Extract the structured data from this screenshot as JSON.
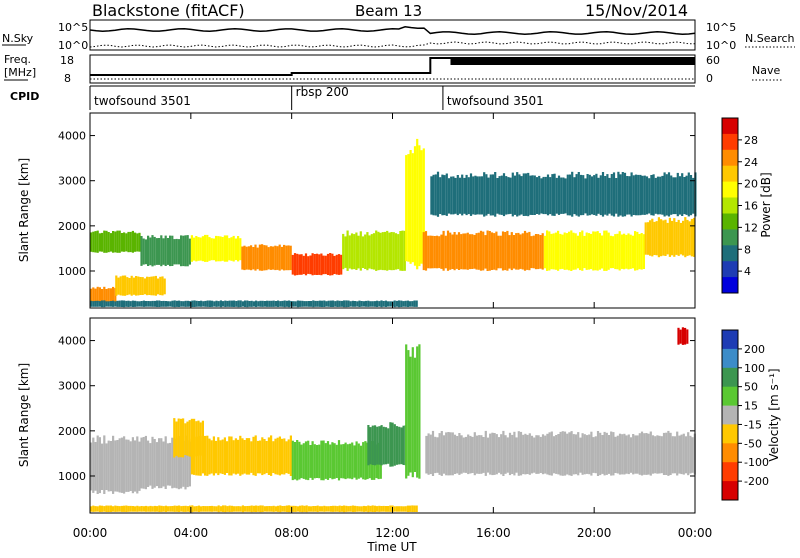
{
  "header": {
    "station": "Blackstone (fitACF)",
    "beam": "Beam 13",
    "date": "15/Nov/2014"
  },
  "params": {
    "nsky_label": "N.Sky",
    "nsky_ticks": [
      "10^5",
      "10^0"
    ],
    "nsearch_label": "N.Search",
    "nsearch_ticks": [
      "10^5",
      "10^0"
    ],
    "freq_label": "Freq.",
    "freq_unit": "[MHz]",
    "freq_ticks": [
      "18",
      "8"
    ],
    "nave_label": "Nave",
    "nave_ticks": [
      "60",
      "0"
    ],
    "cpid_label": "CPID",
    "cpid_segments": [
      {
        "name": "twofsound 3501",
        "start_hour": 0.0
      },
      {
        "name": "rbsp 200",
        "start_hour": 8.0
      },
      {
        "name": "twofsound 3501",
        "start_hour": 14.0
      }
    ]
  },
  "axes": {
    "ylabel": "Slant Range [km]",
    "yticks": [
      "4000",
      "3000",
      "2000",
      "1000"
    ],
    "xlabel": "Time UT",
    "xticks": [
      "00:00",
      "04:00",
      "08:00",
      "12:00",
      "16:00",
      "20:00",
      "00:00"
    ]
  },
  "colorbars": {
    "power": {
      "label": "Power [dB]",
      "ticks": [
        "28",
        "24",
        "20",
        "16",
        "12",
        "8",
        "4"
      ],
      "colors": [
        "#d70000",
        "#ff3c00",
        "#ff8c00",
        "#ffc800",
        "#ffff00",
        "#b4e600",
        "#5ab400",
        "#3c9650",
        "#1e6e7a",
        "#1e3cb4",
        "#0000dc"
      ]
    },
    "velocity": {
      "label": "Velocity [m s⁻¹]",
      "ticks": [
        "200",
        "100",
        "50",
        "15",
        "-15",
        "-50",
        "-100",
        "-200"
      ],
      "colors": [
        "#1e3cb4",
        "#3c8cc8",
        "#3c9650",
        "#5ac832",
        "#b4b4b4",
        "#ffc800",
        "#ff8c00",
        "#ff3c00",
        "#d70000"
      ]
    }
  },
  "chart_data": [
    {
      "type": "heatmap",
      "name": "power",
      "x_unit": "hours UT",
      "x_range": [
        0,
        24
      ],
      "y_range": [
        180,
        4500
      ],
      "value_range": [
        0,
        32
      ],
      "regions": [
        {
          "t0": 0.0,
          "t1": 1.0,
          "r0": 300,
          "r1": 650,
          "value": 26
        },
        {
          "t0": 1.0,
          "t1": 3.0,
          "r0": 450,
          "r1": 900,
          "value": 22
        },
        {
          "t0": 0.0,
          "t1": 2.0,
          "r0": 1400,
          "r1": 1900,
          "value": 14
        },
        {
          "t0": 2.0,
          "t1": 4.0,
          "r0": 1100,
          "r1": 1800,
          "value": 10
        },
        {
          "t0": 4.0,
          "t1": 6.0,
          "r0": 1200,
          "r1": 1800,
          "value": 20
        },
        {
          "t0": 6.0,
          "t1": 8.0,
          "r0": 1000,
          "r1": 1600,
          "value": 24
        },
        {
          "t0": 8.0,
          "t1": 10.0,
          "r0": 900,
          "r1": 1400,
          "value": 28
        },
        {
          "t0": 10.0,
          "t1": 12.5,
          "r0": 1000,
          "r1": 1900,
          "value": 16
        },
        {
          "t0": 12.5,
          "t1": 13.2,
          "r0": 1000,
          "r1": 4000,
          "value": 20
        },
        {
          "t0": 13.2,
          "t1": 18.0,
          "r0": 1000,
          "r1": 1900,
          "value": 24
        },
        {
          "t0": 18.0,
          "t1": 22.0,
          "r0": 1000,
          "r1": 1900,
          "value": 20
        },
        {
          "t0": 22.0,
          "t1": 24.0,
          "r0": 1300,
          "r1": 2200,
          "value": 22
        },
        {
          "t0": 0.0,
          "t1": 13.0,
          "r0": 200,
          "r1": 350,
          "value": 8
        },
        {
          "t0": 13.5,
          "t1": 24.0,
          "r0": 2200,
          "r1": 3200,
          "value": 6
        }
      ]
    },
    {
      "type": "heatmap",
      "name": "velocity",
      "x_unit": "hours UT",
      "x_range": [
        0,
        24
      ],
      "y_range": [
        180,
        4500
      ],
      "value_range": [
        -250,
        250
      ],
      "regions": [
        {
          "t0": 0.0,
          "t1": 2.0,
          "r0": 600,
          "r1": 1900,
          "value": 0
        },
        {
          "t0": 2.0,
          "t1": 4.0,
          "r0": 700,
          "r1": 1900,
          "value": 0
        },
        {
          "t0": 3.3,
          "t1": 4.5,
          "r0": 1400,
          "r1": 2300,
          "value": -80
        },
        {
          "t0": 4.0,
          "t1": 8.0,
          "r0": 1000,
          "r1": 1900,
          "value": -70
        },
        {
          "t0": 8.0,
          "t1": 11.5,
          "r0": 900,
          "r1": 1800,
          "value": 40
        },
        {
          "t0": 11.0,
          "t1": 12.5,
          "r0": 1200,
          "r1": 2200,
          "value": 120
        },
        {
          "t0": 12.5,
          "t1": 13.1,
          "r0": 900,
          "r1": 4000,
          "value": 40
        },
        {
          "t0": 13.3,
          "t1": 24.0,
          "r0": 1000,
          "r1": 2000,
          "value": 0
        },
        {
          "t0": 0.0,
          "t1": 13.0,
          "r0": 200,
          "r1": 350,
          "value": -30
        },
        {
          "t0": 23.3,
          "t1": 23.7,
          "r0": 3900,
          "r1": 4300,
          "value": -200
        }
      ]
    }
  ]
}
